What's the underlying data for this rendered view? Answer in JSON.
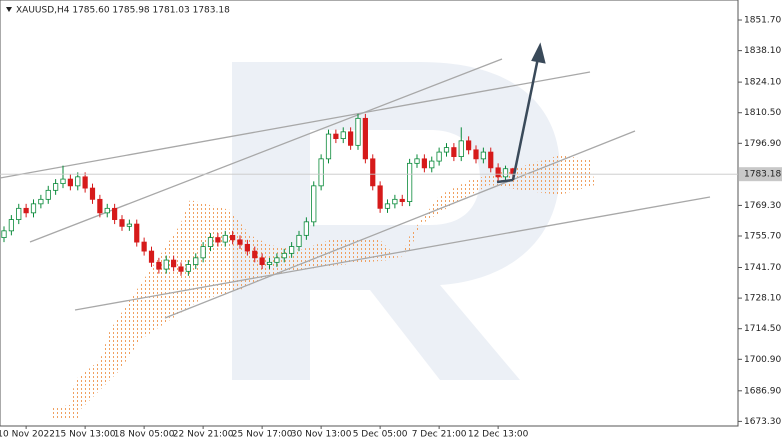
{
  "chart_data": {
    "type": "candlestick",
    "title": "XAUUSD,H4  1785.60 1785.98 1781.03 1783.18",
    "categories": [
      null,
      null,
      null,
      "10 Nov 2022",
      null,
      null,
      null,
      null,
      null,
      null,
      null,
      "15 Nov 13:00",
      null,
      null,
      null,
      null,
      null,
      null,
      null,
      "18 Nov 05:00",
      null,
      null,
      null,
      null,
      null,
      null,
      null,
      "22 Nov 21:00",
      null,
      null,
      null,
      null,
      null,
      null,
      null,
      "25 Nov 17:00",
      null,
      null,
      null,
      null,
      null,
      null,
      null,
      "30 Nov 13:00",
      null,
      null,
      null,
      null,
      null,
      null,
      null,
      "5 Dec 05:00",
      null,
      null,
      null,
      null,
      null,
      null,
      null,
      "7 Dec 21:00",
      null,
      null,
      null,
      null,
      null,
      null,
      null,
      "12 Dec 13:00",
      null,
      null
    ],
    "open": [
      1755,
      1758,
      1763,
      1768,
      1766,
      1770,
      1772,
      1776,
      1779,
      1781,
      1778,
      1782,
      1777,
      1772,
      1766,
      1768,
      1763,
      1760,
      1761,
      1753,
      1749,
      1744,
      1741,
      1745,
      1742,
      1740,
      1743,
      1746,
      1751,
      1755,
      1753,
      1756,
      1754,
      1752,
      1749,
      1746,
      1743,
      1744,
      1746,
      1748,
      1751,
      1756,
      1762,
      1778,
      1790,
      1801,
      1799,
      1802,
      1796,
      1808,
      1790,
      1778,
      1768,
      1770,
      1772,
      1771,
      1788,
      1790,
      1786,
      1789,
      1793,
      1795,
      1791,
      1798,
      1794,
      1790,
      1793,
      1786,
      1782,
      1785.6
    ],
    "high": [
      1760,
      1765,
      1770,
      1770,
      1772,
      1774,
      1778,
      1781,
      1787,
      1783,
      1784,
      1784,
      1779,
      1774,
      1770,
      1770,
      1765,
      1763,
      1763,
      1755,
      1751,
      1746,
      1747,
      1747,
      1744,
      1745,
      1748,
      1753,
      1757,
      1757,
      1758,
      1758,
      1756,
      1754,
      1751,
      1748,
      1746,
      1748,
      1750,
      1753,
      1758,
      1764,
      1780,
      1792,
      1803,
      1803,
      1804,
      1804,
      1810,
      1810,
      1792,
      1780,
      1772,
      1774,
      1774,
      1790,
      1792,
      1792,
      1791,
      1795,
      1797,
      1797,
      1804,
      1800,
      1796,
      1795,
      1795,
      1788,
      1787,
      1785.98
    ],
    "low": [
      1753,
      1756,
      1761,
      1764,
      1764,
      1768,
      1770,
      1774,
      1777,
      1776,
      1776,
      1775,
      1770,
      1764,
      1764,
      1761,
      1758,
      1758,
      1751,
      1747,
      1742,
      1739,
      1739,
      1740,
      1738,
      1738,
      1741,
      1744,
      1749,
      1751,
      1751,
      1752,
      1750,
      1747,
      1744,
      1741,
      1741,
      1742,
      1744,
      1746,
      1749,
      1754,
      1760,
      1776,
      1788,
      1797,
      1797,
      1794,
      1794,
      1788,
      1776,
      1766,
      1766,
      1768,
      1769,
      1769,
      1786,
      1784,
      1784,
      1787,
      1791,
      1789,
      1789,
      1792,
      1788,
      1788,
      1784,
      1780,
      1780,
      1781.03
    ],
    "close": [
      1758,
      1763,
      1768,
      1766,
      1770,
      1772,
      1776,
      1779,
      1781,
      1778,
      1782,
      1777,
      1772,
      1766,
      1768,
      1763,
      1760,
      1761,
      1753,
      1749,
      1744,
      1741,
      1745,
      1742,
      1740,
      1743,
      1746,
      1751,
      1755,
      1753,
      1756,
      1754,
      1752,
      1749,
      1746,
      1743,
      1744,
      1746,
      1748,
      1751,
      1756,
      1762,
      1778,
      1790,
      1801,
      1799,
      1802,
      1796,
      1808,
      1790,
      1778,
      1768,
      1770,
      1772,
      1771,
      1788,
      1790,
      1786,
      1789,
      1793,
      1795,
      1791,
      1798,
      1794,
      1790,
      1793,
      1786,
      1782,
      1785.6,
      1783.18
    ],
    "up_color": "#0a8a3a",
    "down_color": "#d61a1a",
    "ylim": [
      1671.7,
      1860.6
    ],
    "yticks": [
      {
        "value": 1851.7,
        "label": "1851.70"
      },
      {
        "value": 1838.1,
        "label": "1838.10"
      },
      {
        "value": 1824.1,
        "label": "1824.10"
      },
      {
        "value": 1810.5,
        "label": "1810.50"
      },
      {
        "value": 1796.9,
        "label": "1796.90"
      },
      {
        "value": 1769.3,
        "label": "1769.30"
      },
      {
        "value": 1755.7,
        "label": "1755.70"
      },
      {
        "value": 1741.7,
        "label": "1741.70"
      },
      {
        "value": 1728.1,
        "label": "1728.10"
      },
      {
        "value": 1714.5,
        "label": "1714.50"
      },
      {
        "value": 1700.9,
        "label": "1700.90"
      },
      {
        "value": 1686.9,
        "label": "1686.90"
      },
      {
        "value": 1673.3,
        "label": "1673.30"
      }
    ],
    "current_price": 1783.18
  }
}
